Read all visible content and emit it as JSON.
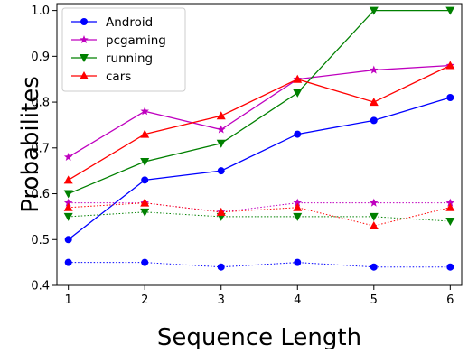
{
  "chart_data": {
    "type": "line",
    "title": "",
    "xlabel": "Sequence Length",
    "ylabel": "Probabilites",
    "x": [
      1,
      2,
      3,
      4,
      5,
      6
    ],
    "xlim": [
      0.85,
      6.15
    ],
    "ylim": [
      0.4,
      1.015
    ],
    "xticks": [
      "1",
      "2",
      "3",
      "4",
      "5",
      "6"
    ],
    "yticks": [
      "0.4",
      "0.5",
      "0.6",
      "0.7",
      "0.8",
      "0.9",
      "1.0"
    ],
    "ytick_values": [
      0.4,
      0.5,
      0.6,
      0.7,
      0.8,
      0.9,
      1.0
    ],
    "grid": false,
    "legend_position": "top-left",
    "series": [
      {
        "name": "Android",
        "color": "#0000ff",
        "marker": "circle",
        "line": "solid",
        "values": [
          0.5,
          0.63,
          0.65,
          0.73,
          0.76,
          0.81
        ]
      },
      {
        "name": "pcgaming",
        "color": "#bf00bf",
        "marker": "star",
        "line": "solid",
        "values": [
          0.68,
          0.78,
          0.74,
          0.85,
          0.87,
          0.88
        ]
      },
      {
        "name": "running",
        "color": "#008000",
        "marker": "triangle-down",
        "line": "solid",
        "values": [
          0.6,
          0.67,
          0.71,
          0.82,
          1.0,
          1.0
        ]
      },
      {
        "name": "cars",
        "color": "#ff0000",
        "marker": "triangle-up",
        "line": "solid",
        "values": [
          0.63,
          0.73,
          0.77,
          0.85,
          0.8,
          0.88
        ]
      },
      {
        "color": "#0000ff",
        "marker": "circle",
        "line": "dotted",
        "values": [
          0.45,
          0.45,
          0.44,
          0.45,
          0.44,
          0.44
        ]
      },
      {
        "color": "#bf00bf",
        "marker": "star",
        "line": "dotted",
        "values": [
          0.58,
          0.58,
          0.56,
          0.58,
          0.58,
          0.58
        ]
      },
      {
        "color": "#008000",
        "marker": "triangle-down",
        "line": "dotted",
        "values": [
          0.55,
          0.56,
          0.55,
          0.55,
          0.55,
          0.54
        ]
      },
      {
        "color": "#ff0000",
        "marker": "triangle-up",
        "line": "dotted",
        "values": [
          0.57,
          0.58,
          0.56,
          0.57,
          0.53,
          0.57
        ]
      }
    ]
  }
}
